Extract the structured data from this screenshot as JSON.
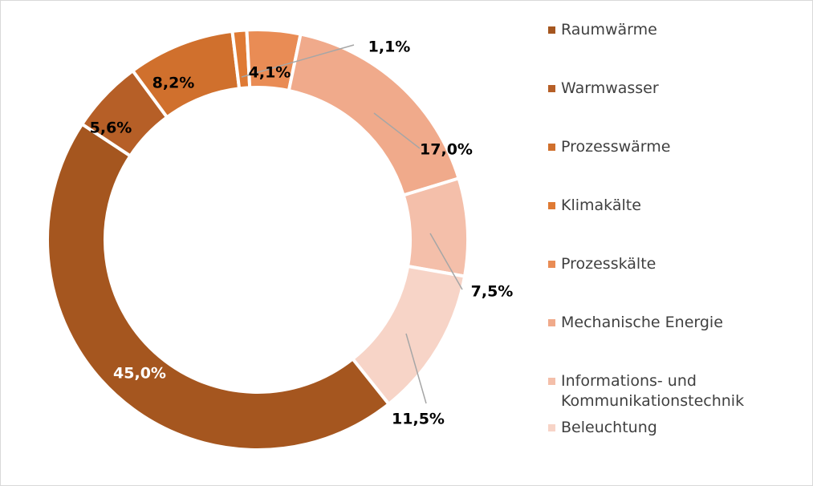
{
  "chart_data": {
    "type": "donut",
    "categories": [
      "Raumwärme",
      "Warmwasser",
      "Prozesswärme",
      "Klimakälte",
      "Prozesskälte",
      "Mechanische Energie",
      "Informations- und Kommunikationstechnik",
      "Beleuchtung"
    ],
    "values": [
      45.0,
      5.6,
      8.2,
      1.1,
      4.1,
      17.0,
      7.5,
      11.5
    ],
    "value_labels": [
      "45,0%",
      "5,6%",
      "8,2%",
      "1,1%",
      "4,1%",
      "17,0%",
      "7,5%",
      "11,5%"
    ],
    "colors": [
      "#a5561f",
      "#b65f27",
      "#d0702d",
      "#df7a34",
      "#e98c55",
      "#f0aa8b",
      "#f4bfaa",
      "#f7d4c7"
    ],
    "legend": "right"
  }
}
